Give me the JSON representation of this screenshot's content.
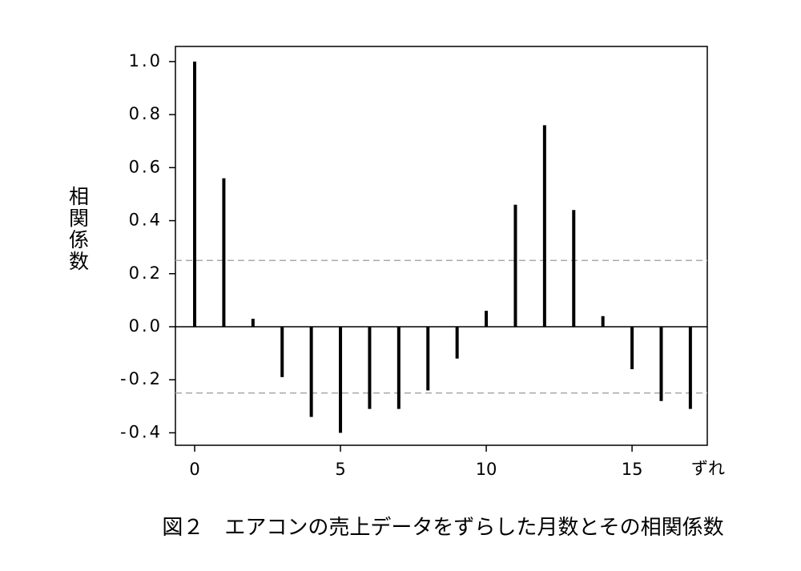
{
  "chart_data": {
    "type": "stem",
    "caption": "図２　エアコンの売上データをずらした月数とその相関係数",
    "x_label": "ずれ",
    "y_label": "相関係数",
    "x": [
      0,
      1,
      2,
      3,
      4,
      5,
      6,
      7,
      8,
      9,
      10,
      11,
      12,
      13,
      14,
      15,
      16,
      17
    ],
    "values": [
      1.0,
      0.56,
      0.03,
      -0.19,
      -0.34,
      -0.4,
      -0.31,
      -0.31,
      -0.24,
      -0.12,
      0.06,
      0.46,
      0.76,
      0.44,
      0.04,
      -0.16,
      -0.28,
      -0.31
    ],
    "confidence_bounds": [
      0.25,
      -0.25
    ],
    "color": "#000000",
    "bound_color": "#aaaaaa",
    "xlim": [
      -0.66,
      17.58
    ],
    "ylim": [
      -0.447,
      1.057
    ],
    "xticks": [
      0,
      5,
      10,
      15
    ],
    "yticks": [
      {
        "value": 1,
        "label": "1.0"
      },
      0.8,
      0.6,
      0.4,
      0.2,
      {
        "value": 0,
        "label": "0.0"
      },
      -0.2,
      -0.4
    ]
  }
}
